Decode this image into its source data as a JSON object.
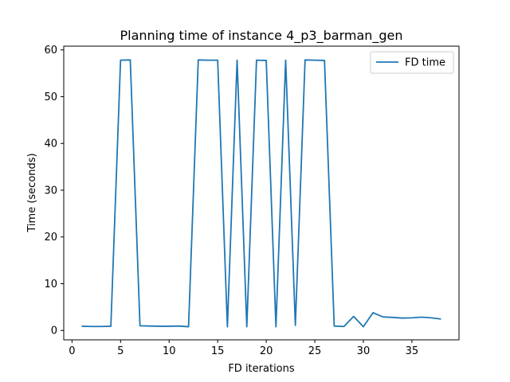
{
  "chart_data": {
    "type": "line",
    "title": "Planning time of instance 4_p3_barman_gen",
    "xlabel": "FD iterations",
    "ylabel": "Time (seconds)",
    "xlim": [
      -0.85,
      39.85
    ],
    "ylim": [
      -2.0,
      60.8
    ],
    "xticks": [
      0,
      5,
      10,
      15,
      20,
      25,
      30,
      35
    ],
    "yticks": [
      0,
      10,
      20,
      30,
      40,
      50,
      60
    ],
    "grid": false,
    "legend_position": "upper right",
    "line_color": "#1f77b4",
    "series": [
      {
        "name": "FD time",
        "x": [
          1,
          2,
          3,
          4,
          5,
          6,
          7,
          8,
          9,
          10,
          11,
          12,
          13,
          14,
          15,
          16,
          17,
          18,
          19,
          20,
          21,
          22,
          23,
          24,
          25,
          26,
          27,
          28,
          29,
          30,
          31,
          32,
          33,
          34,
          35,
          36,
          37,
          38
        ],
        "y": [
          0.9,
          0.85,
          0.85,
          0.9,
          57.8,
          57.85,
          1.0,
          0.95,
          0.9,
          0.9,
          0.95,
          0.8,
          57.85,
          57.8,
          57.8,
          0.8,
          57.8,
          0.8,
          57.8,
          57.75,
          0.8,
          57.8,
          1.1,
          57.85,
          57.8,
          57.75,
          0.95,
          0.85,
          3.0,
          0.8,
          3.8,
          2.9,
          2.8,
          2.65,
          2.7,
          2.85,
          2.7,
          2.45
        ]
      }
    ]
  }
}
